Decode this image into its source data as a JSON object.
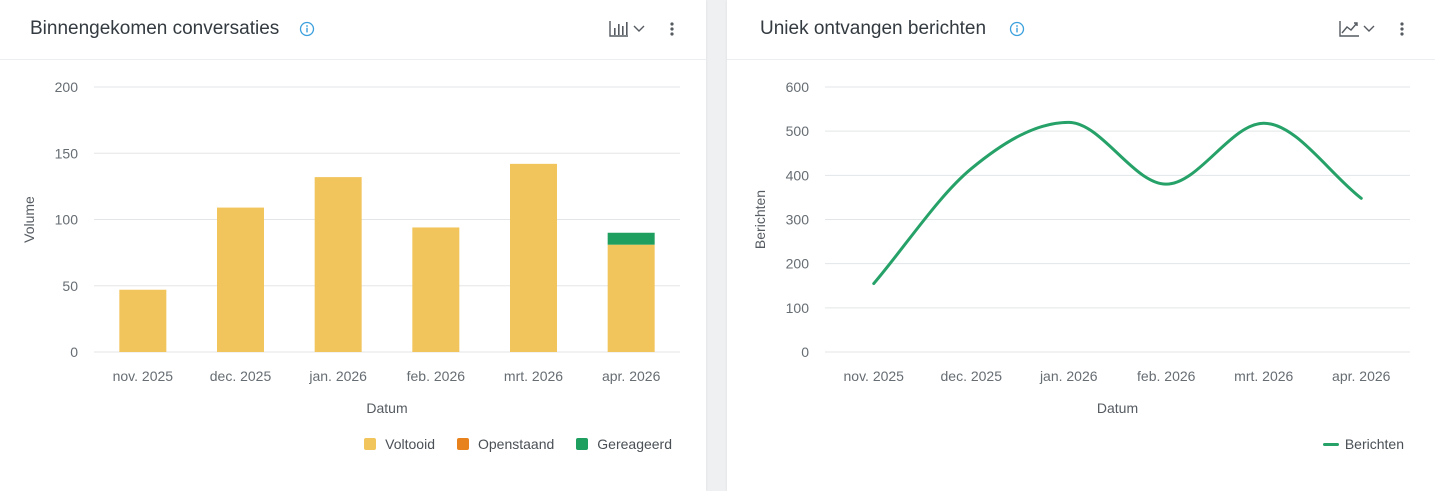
{
  "panels": [
    {
      "title": "Binnengekomen conversaties",
      "icons": {
        "info": "info-icon",
        "chart_type": "bar-chart-icon",
        "menu": "more-vertical-icon"
      }
    },
    {
      "title": "Uniek ontvangen berichten",
      "icons": {
        "info": "info-icon",
        "chart_type": "line-chart-icon",
        "menu": "more-vertical-icon"
      }
    }
  ],
  "colors": {
    "voltooid": "#f2c55c",
    "openstaand": "#e8821c",
    "gereageerd": "#1e9e5f",
    "berichten": "#26a269",
    "info": "#3ba0dd",
    "grid": "#e3e6e8"
  },
  "chart_data": [
    {
      "type": "bar",
      "stacked": true,
      "categories": [
        "nov. 2025",
        "dec. 2025",
        "jan. 2026",
        "feb. 2026",
        "mrt. 2026",
        "apr. 2026"
      ],
      "series": [
        {
          "name": "Voltooid",
          "values": [
            47,
            109,
            132,
            94,
            142,
            81
          ]
        },
        {
          "name": "Openstaand",
          "values": [
            0,
            0,
            0,
            0,
            0,
            0
          ]
        },
        {
          "name": "Gereageerd",
          "values": [
            0,
            0,
            0,
            0,
            0,
            9
          ]
        }
      ],
      "xlabel": "Datum",
      "ylabel": "Volume",
      "ylim": [
        0,
        200
      ],
      "yticks": [
        0,
        50,
        100,
        150,
        200
      ],
      "grid": true,
      "legend_position": "bottom-right"
    },
    {
      "type": "line",
      "categories": [
        "nov. 2025",
        "dec. 2025",
        "jan. 2026",
        "feb. 2026",
        "mrt. 2026",
        "apr. 2026"
      ],
      "series": [
        {
          "name": "Berichten",
          "values": [
            155,
            415,
            520,
            380,
            518,
            348
          ]
        }
      ],
      "xlabel": "Datum",
      "ylabel": "Berichten",
      "ylim": [
        0,
        600
      ],
      "yticks": [
        0,
        100,
        200,
        300,
        400,
        500,
        600
      ],
      "grid": true,
      "smooth": true,
      "legend_position": "bottom-right"
    }
  ]
}
